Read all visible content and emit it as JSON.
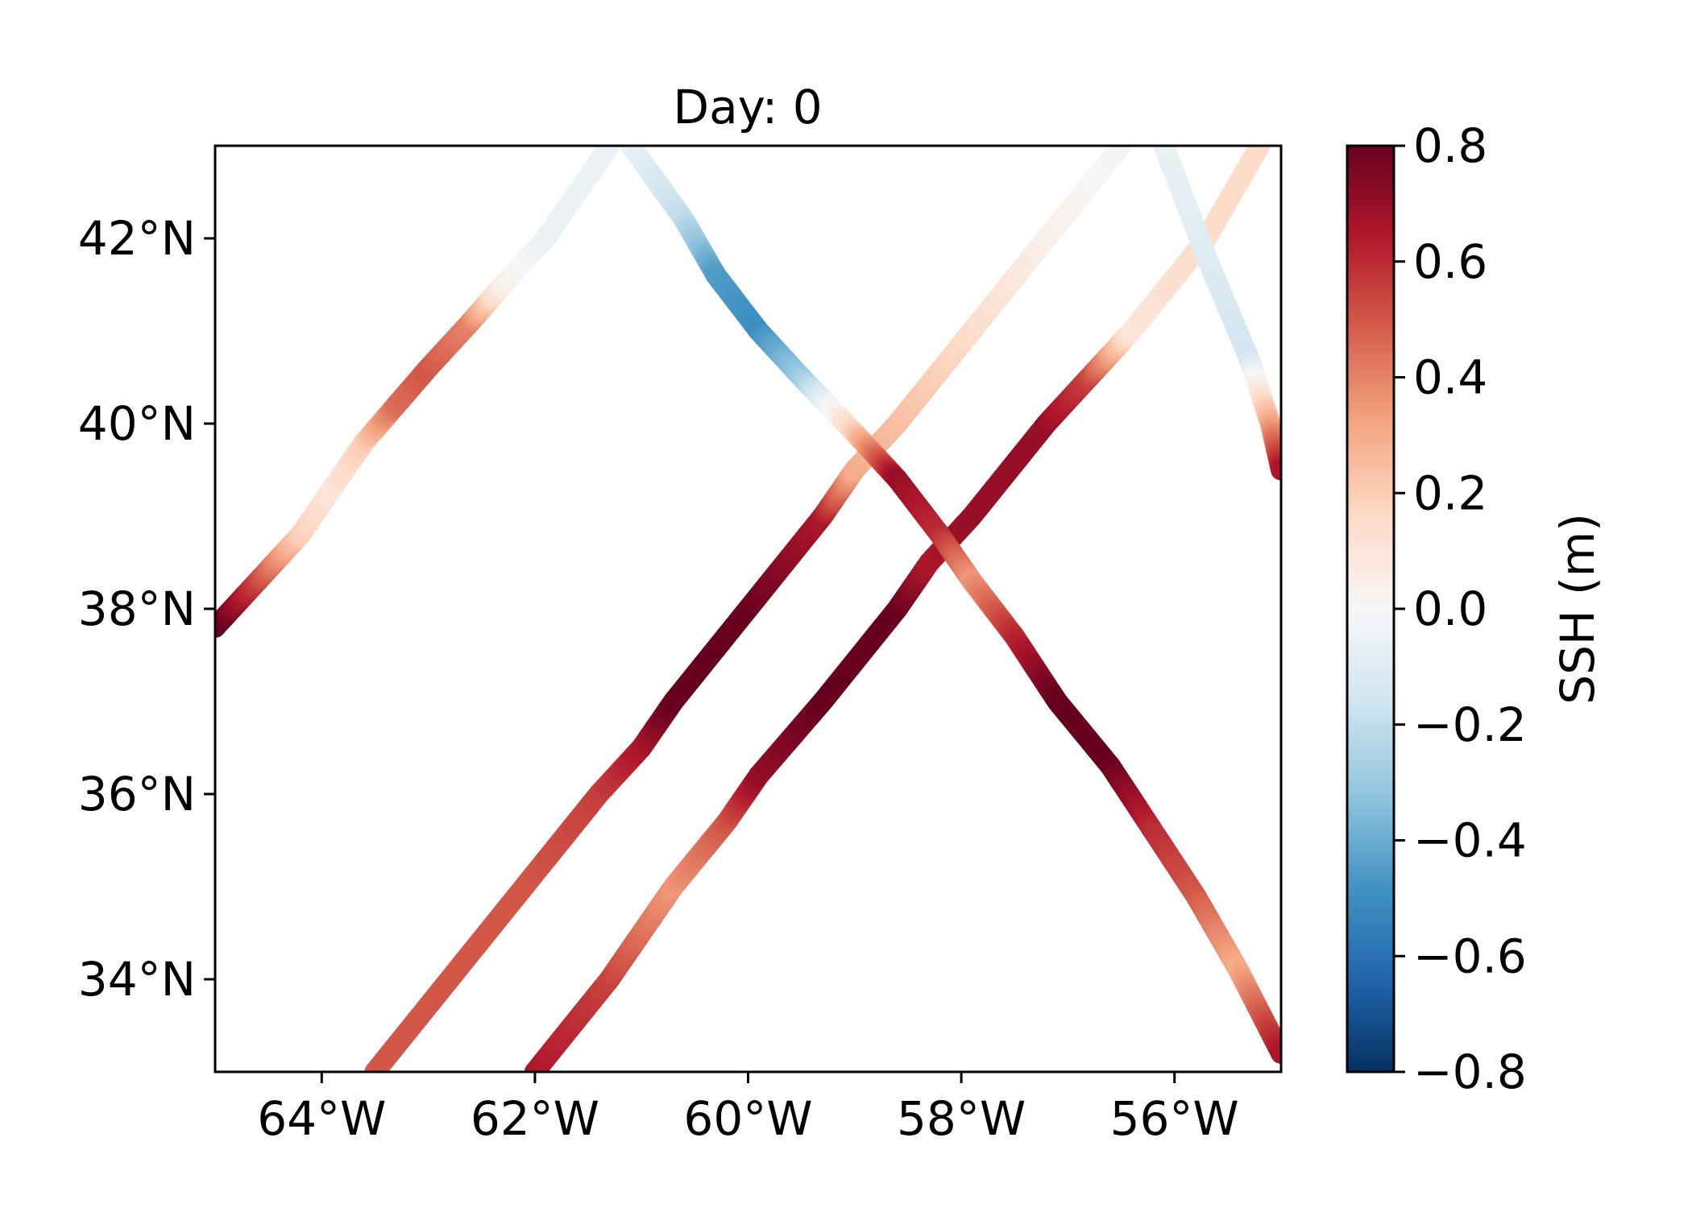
{
  "chart_data": {
    "type": "scatter",
    "title": "Day: 0",
    "xlabel": "",
    "ylabel": "",
    "xlim": [
      -65,
      -55
    ],
    "ylim": [
      33,
      43
    ],
    "x_ticks": [
      {
        "value": -64,
        "label": "64°W"
      },
      {
        "value": -62,
        "label": "62°W"
      },
      {
        "value": -60,
        "label": "60°W"
      },
      {
        "value": -58,
        "label": "58°W"
      },
      {
        "value": -56,
        "label": "56°W"
      }
    ],
    "y_ticks": [
      {
        "value": 34,
        "label": "34°N"
      },
      {
        "value": 36,
        "label": "36°N"
      },
      {
        "value": 38,
        "label": "38°N"
      },
      {
        "value": 40,
        "label": "40°N"
      },
      {
        "value": 42,
        "label": "42°N"
      }
    ],
    "colorbar": {
      "label": "SSH (m)",
      "colormap": "RdBu_r",
      "range": [
        -0.8,
        0.8
      ],
      "ticks": [
        {
          "value": 0.8,
          "label": "0.8"
        },
        {
          "value": 0.6,
          "label": "0.6"
        },
        {
          "value": 0.4,
          "label": "0.4"
        },
        {
          "value": 0.2,
          "label": "0.2"
        },
        {
          "value": 0.0,
          "label": "0.0"
        },
        {
          "value": -0.2,
          "label": "−0.2"
        },
        {
          "value": -0.4,
          "label": "−0.4"
        },
        {
          "value": -0.6,
          "label": "−0.6"
        },
        {
          "value": -0.8,
          "label": "−0.8"
        }
      ],
      "colors": [
        "#053061",
        "#2166ac",
        "#4393c3",
        "#92c5de",
        "#d1e5f0",
        "#f7f7f7",
        "#fddbc7",
        "#f4a582",
        "#d6604d",
        "#b2182b",
        "#67001f"
      ]
    },
    "series": [
      {
        "points": [
          {
            "x": -65.0,
            "y": 37.8,
            "v": 0.85
          },
          {
            "x": -64.6,
            "y": 38.3,
            "v": 0.55
          },
          {
            "x": -64.2,
            "y": 38.8,
            "v": 0.2
          },
          {
            "x": -63.9,
            "y": 39.3,
            "v": 0.1
          },
          {
            "x": -63.6,
            "y": 39.8,
            "v": 0.2
          },
          {
            "x": -63.3,
            "y": 40.2,
            "v": 0.45
          },
          {
            "x": -63.0,
            "y": 40.6,
            "v": 0.5
          },
          {
            "x": -62.6,
            "y": 41.1,
            "v": 0.4
          },
          {
            "x": -62.3,
            "y": 41.5,
            "v": 0.05
          },
          {
            "x": -61.9,
            "y": 42.0,
            "v": -0.05
          },
          {
            "x": -61.6,
            "y": 42.5,
            "v": -0.05
          },
          {
            "x": -61.3,
            "y": 43.0,
            "v": -0.05
          }
        ]
      },
      {
        "points": [
          {
            "x": -63.5,
            "y": 33.0,
            "v": 0.5
          },
          {
            "x": -62.8,
            "y": 34.0,
            "v": 0.5
          },
          {
            "x": -62.1,
            "y": 35.0,
            "v": 0.5
          },
          {
            "x": -61.4,
            "y": 36.0,
            "v": 0.55
          },
          {
            "x": -61.0,
            "y": 36.5,
            "v": 0.65
          },
          {
            "x": -60.7,
            "y": 37.0,
            "v": 0.8
          },
          {
            "x": -60.0,
            "y": 38.0,
            "v": 0.8
          },
          {
            "x": -59.3,
            "y": 39.0,
            "v": 0.65
          },
          {
            "x": -59.0,
            "y": 39.5,
            "v": 0.3
          },
          {
            "x": -58.6,
            "y": 40.0,
            "v": 0.25
          },
          {
            "x": -57.9,
            "y": 41.0,
            "v": 0.15
          },
          {
            "x": -57.2,
            "y": 42.0,
            "v": 0.05
          },
          {
            "x": -56.5,
            "y": 43.0,
            "v": -0.02
          }
        ]
      },
      {
        "points": [
          {
            "x": -62.0,
            "y": 33.0,
            "v": 0.65
          },
          {
            "x": -61.3,
            "y": 34.0,
            "v": 0.55
          },
          {
            "x": -60.7,
            "y": 35.0,
            "v": 0.35
          },
          {
            "x": -60.2,
            "y": 35.7,
            "v": 0.5
          },
          {
            "x": -59.9,
            "y": 36.2,
            "v": 0.7
          },
          {
            "x": -59.3,
            "y": 37.0,
            "v": 0.8
          },
          {
            "x": -58.6,
            "y": 38.0,
            "v": 0.8
          },
          {
            "x": -58.3,
            "y": 38.5,
            "v": 0.65
          },
          {
            "x": -57.9,
            "y": 39.0,
            "v": 0.7
          },
          {
            "x": -57.2,
            "y": 40.0,
            "v": 0.7
          },
          {
            "x": -56.8,
            "y": 40.5,
            "v": 0.55
          },
          {
            "x": -56.4,
            "y": 41.0,
            "v": 0.1
          },
          {
            "x": -55.7,
            "y": 42.0,
            "v": 0.15
          },
          {
            "x": -55.2,
            "y": 43.0,
            "v": 0.15
          }
        ]
      },
      {
        "points": [
          {
            "x": -61.1,
            "y": 43.0,
            "v": -0.05
          },
          {
            "x": -60.6,
            "y": 42.2,
            "v": -0.2
          },
          {
            "x": -60.3,
            "y": 41.6,
            "v": -0.45
          },
          {
            "x": -59.9,
            "y": 41.0,
            "v": -0.5
          },
          {
            "x": -59.5,
            "y": 40.5,
            "v": -0.3
          },
          {
            "x": -59.0,
            "y": 39.9,
            "v": 0.2
          },
          {
            "x": -58.6,
            "y": 39.4,
            "v": 0.7
          },
          {
            "x": -58.2,
            "y": 38.8,
            "v": 0.6
          },
          {
            "x": -57.9,
            "y": 38.3,
            "v": 0.35
          },
          {
            "x": -57.5,
            "y": 37.7,
            "v": 0.6
          },
          {
            "x": -57.1,
            "y": 37.0,
            "v": 0.8
          },
          {
            "x": -56.6,
            "y": 36.3,
            "v": 0.8
          },
          {
            "x": -56.2,
            "y": 35.6,
            "v": 0.6
          },
          {
            "x": -55.8,
            "y": 34.9,
            "v": 0.5
          },
          {
            "x": -55.4,
            "y": 34.1,
            "v": 0.3
          },
          {
            "x": -55.0,
            "y": 33.2,
            "v": 0.65
          }
        ]
      },
      {
        "points": [
          {
            "x": -56.1,
            "y": 43.0,
            "v": -0.05
          },
          {
            "x": -55.7,
            "y": 41.8,
            "v": -0.1
          },
          {
            "x": -55.3,
            "y": 40.7,
            "v": -0.15
          },
          {
            "x": -55.1,
            "y": 40.0,
            "v": 0.3
          },
          {
            "x": -55.0,
            "y": 39.5,
            "v": 0.65
          }
        ]
      }
    ]
  }
}
